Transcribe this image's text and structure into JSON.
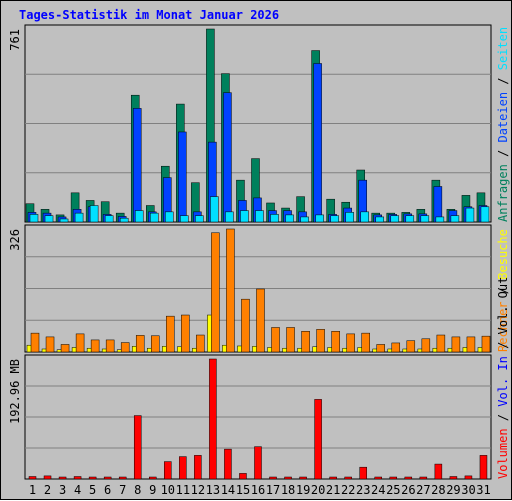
{
  "title": "Tages-Statistik im Monat Januar 2026",
  "colors": {
    "bg": "#c0c0c0",
    "anfragen": "#00805c",
    "dateien": "#0042ff",
    "seiten": "#00e0ff",
    "besuche": "#ffff00",
    "rechner": "#ff8000",
    "vol_in": "#0000ff",
    "volumen": "#ff0000",
    "weekend_day": "#00805c"
  },
  "chart_data": [
    {
      "type": "bar",
      "name": "hits",
      "ymax_label": "761",
      "ylim": [
        0,
        761
      ],
      "side_label": [
        {
          "text": "Anfragen",
          "color": "#00805c"
        },
        {
          "text": " / ",
          "color": "#000000"
        },
        {
          "text": "Dateien",
          "color": "#0042ff"
        },
        {
          "text": " / ",
          "color": "#000000"
        },
        {
          "text": "Seiten",
          "color": "#00e0ff"
        }
      ],
      "categories": [
        "1",
        "2",
        "3",
        "4",
        "5",
        "6",
        "7",
        "8",
        "9",
        "10",
        "11",
        "12",
        "13",
        "14",
        "15",
        "16",
        "17",
        "18",
        "19",
        "20",
        "21",
        "22",
        "23",
        "24",
        "25",
        "26",
        "27",
        "28",
        "29",
        "30",
        "31"
      ],
      "series": [
        {
          "name": "Anfragen",
          "color": "#00805c",
          "values": [
            72,
            50,
            28,
            115,
            85,
            80,
            35,
            500,
            65,
            220,
            465,
            155,
            761,
            585,
            165,
            250,
            75,
            55,
            100,
            676,
            90,
            78,
            205,
            35,
            35,
            38,
            50,
            165,
            50,
            105,
            115
          ]
        },
        {
          "name": "Dateien",
          "color": "#0042ff",
          "values": [
            38,
            35,
            20,
            50,
            60,
            30,
            22,
            448,
            40,
            175,
            355,
            40,
            315,
            510,
            85,
            95,
            45,
            45,
            40,
            625,
            30,
            55,
            165,
            28,
            30,
            32,
            32,
            140,
            45,
            60,
            65
          ]
        },
        {
          "name": "Seiten",
          "color": "#00e0ff",
          "values": [
            30,
            25,
            12,
            35,
            65,
            25,
            15,
            45,
            35,
            40,
            25,
            25,
            100,
            40,
            45,
            45,
            30,
            28,
            20,
            28,
            25,
            38,
            40,
            20,
            25,
            25,
            25,
            20,
            25,
            55,
            60
          ]
        }
      ]
    },
    {
      "type": "bar",
      "name": "visits",
      "ymax_label": "326",
      "ylim": [
        0,
        326
      ],
      "side_label": [
        {
          "text": "Rechner",
          "color": "#ff8000"
        },
        {
          "text": " / ",
          "color": "#000000"
        },
        {
          "text": "Besuche",
          "color": "#ffff00"
        }
      ],
      "categories": [
        "1",
        "2",
        "3",
        "4",
        "5",
        "6",
        "7",
        "8",
        "9",
        "10",
        "11",
        "12",
        "13",
        "14",
        "15",
        "16",
        "17",
        "18",
        "19",
        "20",
        "21",
        "22",
        "23",
        "24",
        "25",
        "26",
        "27",
        "28",
        "29",
        "30",
        "31"
      ],
      "series": [
        {
          "name": "Besuche",
          "color": "#ffff00",
          "values": [
            18,
            8,
            6,
            12,
            10,
            8,
            6,
            15,
            10,
            15,
            14,
            10,
            98,
            18,
            16,
            15,
            12,
            10,
            10,
            14,
            12,
            10,
            12,
            8,
            8,
            8,
            8,
            10,
            10,
            12,
            12
          ]
        },
        {
          "name": "Rechner",
          "color": "#ff8000",
          "values": [
            50,
            40,
            20,
            48,
            32,
            32,
            25,
            44,
            43,
            95,
            98,
            45,
            316,
            326,
            140,
            167,
            65,
            65,
            55,
            60,
            55,
            48,
            50,
            20,
            24,
            30,
            35,
            45,
            40,
            40,
            42
          ]
        }
      ]
    },
    {
      "type": "bar",
      "name": "volume",
      "ymax_label": "192.96 MB",
      "ylim": [
        0,
        192.96
      ],
      "side_label": [
        {
          "text": "Volumen",
          "color": "#ff0000"
        },
        {
          "text": " / ",
          "color": "#000000"
        },
        {
          "text": "Vol. In",
          "color": "#0000ff"
        },
        {
          "text": " / ",
          "color": "#000000"
        },
        {
          "text": "Vol. Out",
          "color": "#000000"
        }
      ],
      "categories": [
        "1",
        "2",
        "3",
        "4",
        "5",
        "6",
        "7",
        "8",
        "9",
        "10",
        "11",
        "12",
        "13",
        "14",
        "15",
        "16",
        "17",
        "18",
        "19",
        "20",
        "21",
        "22",
        "23",
        "24",
        "25",
        "26",
        "27",
        "28",
        "29",
        "30",
        "31"
      ],
      "series": [
        {
          "name": "Volumen",
          "color": "#ff0000",
          "values": [
            4,
            5,
            2,
            4,
            2,
            2,
            2,
            102,
            3,
            28,
            36,
            38,
            192.96,
            48,
            9,
            52,
            3,
            3,
            3,
            128,
            3,
            3,
            19,
            3,
            3,
            3,
            3,
            24,
            4,
            5,
            38
          ]
        }
      ]
    }
  ],
  "day_labels": [
    {
      "text": "1",
      "weekend": false
    },
    {
      "text": "2",
      "weekend": false
    },
    {
      "text": "3",
      "weekend": true
    },
    {
      "text": "4",
      "weekend": true
    },
    {
      "text": "5",
      "weekend": false
    },
    {
      "text": "6",
      "weekend": false
    },
    {
      "text": "7",
      "weekend": false
    },
    {
      "text": "8",
      "weekend": false
    },
    {
      "text": "9",
      "weekend": false
    },
    {
      "text": "10",
      "weekend": true
    },
    {
      "text": "11",
      "weekend": true
    },
    {
      "text": "12",
      "weekend": false
    },
    {
      "text": "13",
      "weekend": false
    },
    {
      "text": "14",
      "weekend": false
    },
    {
      "text": "15",
      "weekend": false
    },
    {
      "text": "16",
      "weekend": false
    },
    {
      "text": "17",
      "weekend": true
    },
    {
      "text": "18",
      "weekend": true
    },
    {
      "text": "19",
      "weekend": false
    },
    {
      "text": "20",
      "weekend": false
    },
    {
      "text": "21",
      "weekend": false
    },
    {
      "text": "22",
      "weekend": false
    },
    {
      "text": "23",
      "weekend": false
    },
    {
      "text": "24",
      "weekend": true
    },
    {
      "text": "25",
      "weekend": true
    },
    {
      "text": "26",
      "weekend": false
    },
    {
      "text": "27",
      "weekend": false
    },
    {
      "text": "28",
      "weekend": false
    },
    {
      "text": "29",
      "weekend": false
    },
    {
      "text": "30",
      "weekend": false
    },
    {
      "text": "31",
      "weekend": true
    }
  ]
}
